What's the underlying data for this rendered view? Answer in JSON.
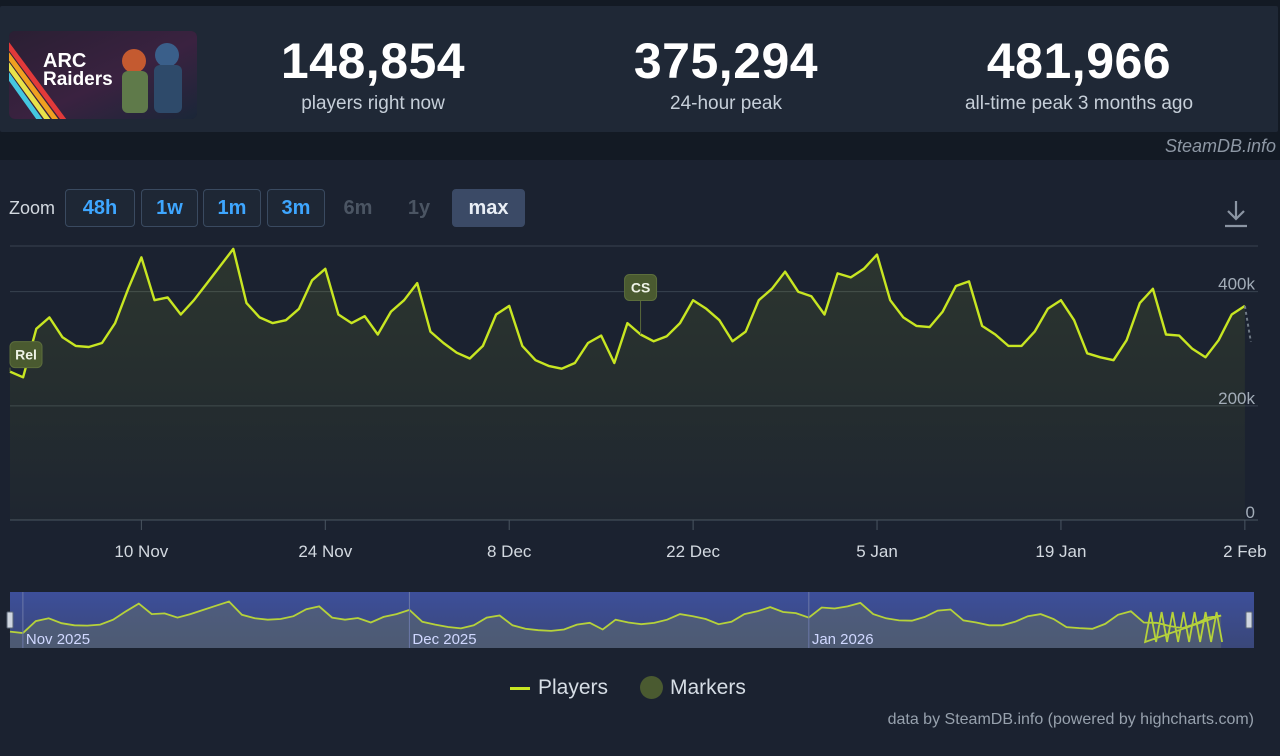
{
  "header": {
    "game_logo_text": [
      "ARC",
      "Raiders"
    ],
    "stats": [
      {
        "value": "148,854",
        "label": "players right now"
      },
      {
        "value": "375,294",
        "label": "24-hour peak"
      },
      {
        "value": "481,966",
        "label": "all-time peak 3 months ago"
      }
    ],
    "credit": "SteamDB.info"
  },
  "zoom": {
    "label": "Zoom",
    "buttons": [
      {
        "label": "48h",
        "state": "enabled"
      },
      {
        "label": "1w",
        "state": "enabled"
      },
      {
        "label": "1m",
        "state": "enabled"
      },
      {
        "label": "3m",
        "state": "enabled"
      },
      {
        "label": "6m",
        "state": "disabled"
      },
      {
        "label": "1y",
        "state": "disabled"
      },
      {
        "label": "max",
        "state": "selected"
      }
    ],
    "download_icon": "download-icon"
  },
  "chart_data": {
    "type": "line",
    "title": "",
    "xlabel": "",
    "ylabel": "",
    "ylim": [
      0,
      480000
    ],
    "y_ticks": [
      {
        "value": 0,
        "label": "0"
      },
      {
        "value": 200000,
        "label": "200k"
      },
      {
        "value": 400000,
        "label": "400k"
      }
    ],
    "x_range": [
      "2025-10-31",
      "2026-02-03"
    ],
    "x_ticks": [
      {
        "date": "2025-11-10",
        "label": "10 Nov"
      },
      {
        "date": "2025-11-24",
        "label": "24 Nov"
      },
      {
        "date": "2025-12-08",
        "label": "8 Dec"
      },
      {
        "date": "2025-12-22",
        "label": "22 Dec"
      },
      {
        "date": "2026-01-05",
        "label": "5 Jan"
      },
      {
        "date": "2026-01-19",
        "label": "19 Jan"
      },
      {
        "date": "2026-02-02",
        "label": "2 Feb"
      }
    ],
    "grid": true,
    "series": [
      {
        "name": "Players",
        "color": "#c8e622",
        "x": [
          "2025-10-31",
          "2025-11-01",
          "2025-11-02",
          "2025-11-03",
          "2025-11-04",
          "2025-11-05",
          "2025-11-06",
          "2025-11-07",
          "2025-11-08",
          "2025-11-09",
          "2025-11-10",
          "2025-11-11",
          "2025-11-12",
          "2025-11-13",
          "2025-11-14",
          "2025-11-15",
          "2025-11-16",
          "2025-11-17",
          "2025-11-18",
          "2025-11-19",
          "2025-11-20",
          "2025-11-21",
          "2025-11-22",
          "2025-11-23",
          "2025-11-24",
          "2025-11-25",
          "2025-11-26",
          "2025-11-27",
          "2025-11-28",
          "2025-11-29",
          "2025-11-30",
          "2025-12-01",
          "2025-12-02",
          "2025-12-03",
          "2025-12-04",
          "2025-12-05",
          "2025-12-06",
          "2025-12-07",
          "2025-12-08",
          "2025-12-09",
          "2025-12-10",
          "2025-12-11",
          "2025-12-12",
          "2025-12-13",
          "2025-12-14",
          "2025-12-15",
          "2025-12-16",
          "2025-12-17",
          "2025-12-18",
          "2025-12-19",
          "2025-12-20",
          "2025-12-21",
          "2025-12-22",
          "2025-12-23",
          "2025-12-24",
          "2025-12-25",
          "2025-12-26",
          "2025-12-27",
          "2025-12-28",
          "2025-12-29",
          "2025-12-30",
          "2025-12-31",
          "2026-01-01",
          "2026-01-02",
          "2026-01-03",
          "2026-01-04",
          "2026-01-05",
          "2026-01-06",
          "2026-01-07",
          "2026-01-08",
          "2026-01-09",
          "2026-01-10",
          "2026-01-11",
          "2026-01-12",
          "2026-01-13",
          "2026-01-14",
          "2026-01-15",
          "2026-01-16",
          "2026-01-17",
          "2026-01-18",
          "2026-01-19",
          "2026-01-20",
          "2026-01-21",
          "2026-01-22",
          "2026-01-23",
          "2026-01-24",
          "2026-01-25",
          "2026-01-26",
          "2026-01-27",
          "2026-01-28",
          "2026-01-29",
          "2026-01-30",
          "2026-01-31",
          "2026-02-01",
          "2026-02-02"
        ],
        "values": [
          260000,
          250000,
          335000,
          355000,
          320000,
          305000,
          303000,
          310000,
          345000,
          405000,
          460000,
          385000,
          390000,
          360000,
          385000,
          415000,
          445000,
          475000,
          380000,
          355000,
          345000,
          350000,
          370000,
          420000,
          440000,
          360000,
          345000,
          357000,
          325000,
          365000,
          385000,
          415000,
          330000,
          310000,
          293000,
          283000,
          305000,
          360000,
          375000,
          305000,
          280000,
          270000,
          265000,
          275000,
          310000,
          323000,
          275000,
          345000,
          325000,
          313000,
          322000,
          345000,
          385000,
          370000,
          350000,
          313000,
          330000,
          385000,
          405000,
          435000,
          400000,
          392000,
          360000,
          432000,
          425000,
          440000,
          465000,
          385000,
          355000,
          340000,
          338000,
          365000,
          410000,
          418000,
          340000,
          325000,
          305000,
          305000,
          330000,
          370000,
          385000,
          350000,
          292000,
          285000,
          280000,
          315000,
          380000,
          405000,
          325000,
          323000,
          300000,
          285000,
          315000,
          360000,
          375000
        ]
      }
    ],
    "markers": [
      {
        "label": "Rel",
        "date": "2025-10-31"
      },
      {
        "label": "CS",
        "date": "2025-12-18"
      }
    ],
    "navigator": {
      "labels": [
        "Nov 2025",
        "Dec 2025",
        "Jan 2026"
      ]
    },
    "legend": {
      "placement": "bottom-center",
      "items": [
        "Players",
        "Markers"
      ]
    }
  },
  "footer": {
    "credit": "data by SteamDB.info (powered by highcharts.com)"
  }
}
